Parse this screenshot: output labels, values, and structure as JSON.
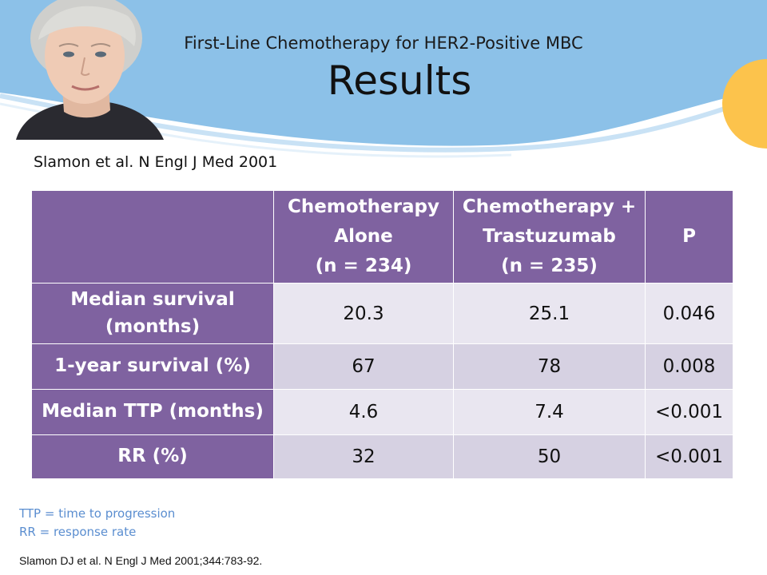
{
  "header": {
    "subtitle": "First-Line Chemotherapy for HER2-Positive MBC",
    "title": "Results"
  },
  "citation": "Slamon et al. N Engl J Med 2001",
  "table": {
    "columns": [
      {
        "line1": "Chemotherapy",
        "line2": "Alone",
        "line3": "(n = 234)"
      },
      {
        "line1": "Chemotherapy +",
        "line2": "Trastuzumab",
        "line3": "(n = 235)"
      },
      {
        "line1": "P"
      }
    ],
    "rows": [
      {
        "label_line1": "Median survival",
        "label_line2": "(months)",
        "values": [
          "20.3",
          "25.1",
          "0.046"
        ]
      },
      {
        "label_line1": "1-year survival (%)",
        "values": [
          "67",
          "78",
          "0.008"
        ]
      },
      {
        "label_line1": "Median TTP (months)",
        "values": [
          "4.6",
          "7.4",
          "<0.001"
        ]
      },
      {
        "label_line1": "RR (%)",
        "values": [
          "32",
          "50",
          "<0.001"
        ]
      }
    ]
  },
  "footnotes": [
    "TTP = time to progression",
    "RR = response rate"
  ],
  "reference": "Slamon DJ et al. N Engl J Med 2001;344:783-92.",
  "colors": {
    "banner_blue": "#8cc1e8",
    "wave_white": "#ffffff",
    "accent_yellow": "#fcc34c",
    "table_purple": "#7f62a0",
    "cell_light": "#e9e6f0",
    "cell_alt": "#d6d1e2",
    "footnote_blue": "#5b8ed0"
  }
}
